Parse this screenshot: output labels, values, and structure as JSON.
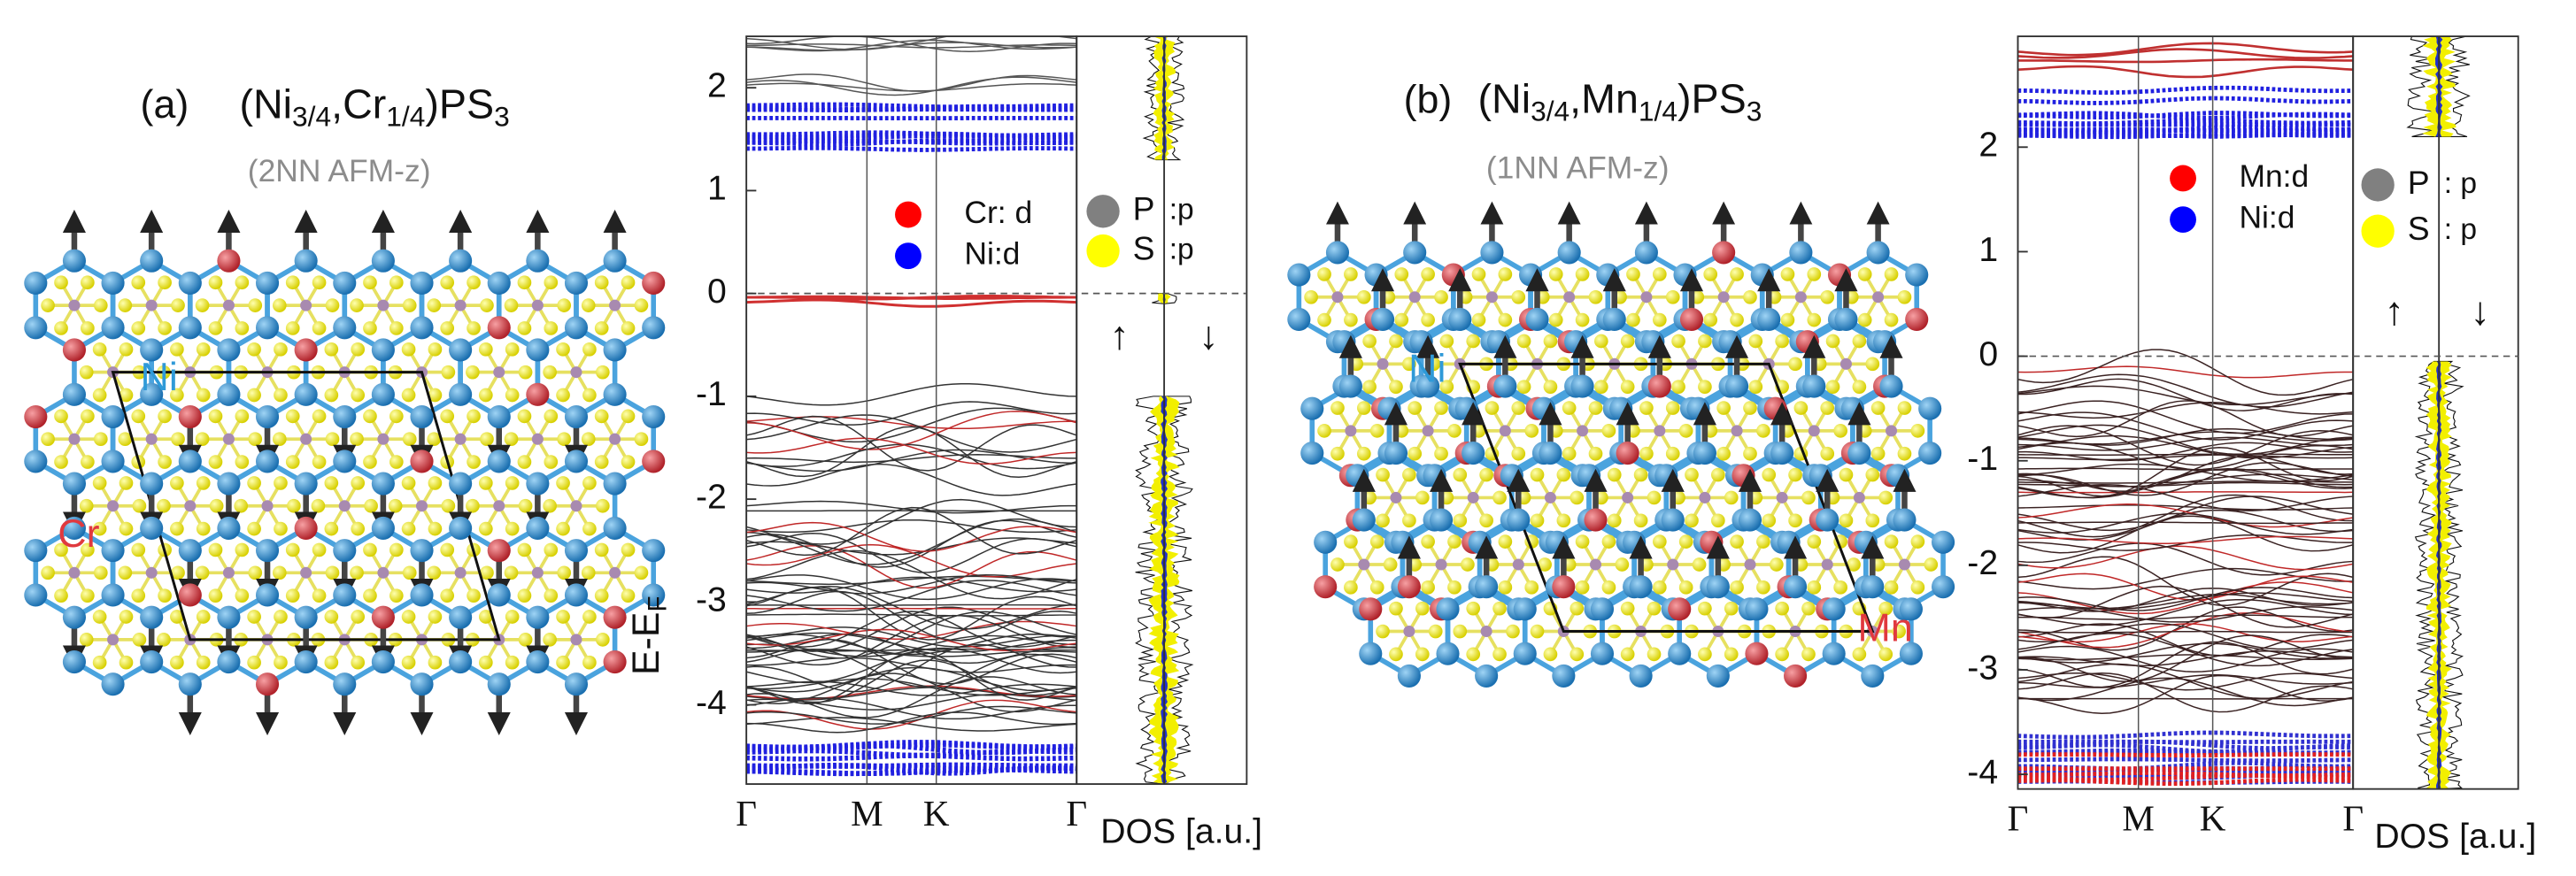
{
  "panels": [
    {
      "label": "(a)",
      "formula": [
        {
          "text": "(Ni"
        },
        {
          "text": "3/4",
          "sub": true
        },
        {
          "text": ",Cr"
        },
        {
          "text": "1/4",
          "sub": true
        },
        {
          "text": ")PS"
        },
        {
          "text": "3",
          "sub": true
        }
      ],
      "config": "(2NN AFM-z)",
      "atom_labels": [
        {
          "text": "Ni",
          "color": "#2f9ad8"
        },
        {
          "text": "Cr",
          "color": "#e0393e"
        }
      ],
      "bands": {
        "ylim": [
          -4.77,
          2.5
        ],
        "yticks": [
          2,
          1,
          0,
          -1,
          -2,
          -3,
          -4
        ],
        "kpoints": [
          "Γ",
          "M",
          "K",
          "Γ"
        ],
        "dos_label": "DOS [a.u.]",
        "legend_orbital": [
          {
            "name": "Cr: d",
            "color": "#ff0000"
          },
          {
            "name": "Ni:d",
            "color": "#0000ff"
          }
        ],
        "legend_dos": [
          {
            "name": "P",
            "orbital": ":p",
            "color": "#808080"
          },
          {
            "name": "S",
            "orbital": ":p",
            "color": "#ffff00"
          }
        ],
        "spin": [
          "↑",
          "↓"
        ]
      }
    },
    {
      "label": "(b)",
      "formula": [
        {
          "text": "(Ni"
        },
        {
          "text": "3/4",
          "sub": true
        },
        {
          "text": ",Mn"
        },
        {
          "text": "1/4",
          "sub": true
        },
        {
          "text": ")PS"
        },
        {
          "text": "3",
          "sub": true
        }
      ],
      "config": "(1NN AFM-z)",
      "atom_labels": [
        {
          "text": "Ni",
          "color": "#2f9ad8"
        },
        {
          "text": "Mn",
          "color": "#e0393e"
        }
      ],
      "bands": {
        "ylim": [
          -4.14,
          3.06
        ],
        "yticks": [
          2,
          1,
          0,
          -1,
          -2,
          -3,
          -4
        ],
        "kpoints": [
          "Γ",
          "M",
          "K",
          "Γ"
        ],
        "dos_label": "DOS [a.u.]",
        "legend_orbital": [
          {
            "name": "Mn:d",
            "color": "#ff0000"
          },
          {
            "name": "Ni:d",
            "color": "#0000ff"
          }
        ],
        "legend_dos": [
          {
            "name": "P",
            "orbital": ": p",
            "color": "#808080"
          },
          {
            "name": "S",
            "orbital": ": p",
            "color": "#ffff00"
          }
        ],
        "spin": [
          "↑",
          "↓"
        ]
      }
    }
  ],
  "ylabel": {
    "main": "E-E",
    "sub": "F"
  }
}
